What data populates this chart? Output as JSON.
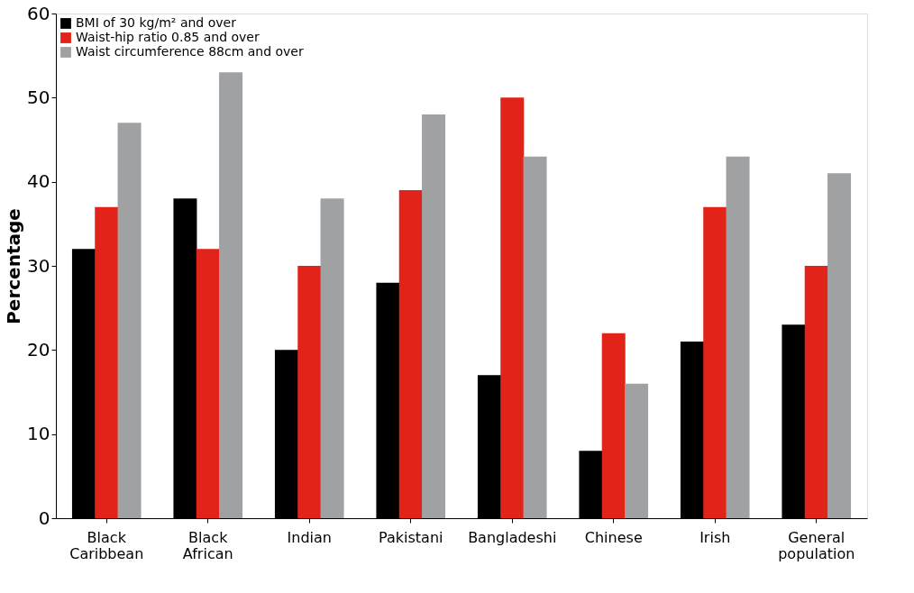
{
  "chart_data": {
    "type": "bar",
    "ylabel": "Percentage",
    "categories": [
      "Black Caribbean",
      "Black African",
      "Indian",
      "Pakistani",
      "Bangladeshi",
      "Chinese",
      "Irish",
      "General population"
    ],
    "series": [
      {
        "name": "BMI of 30 kg/m² and over",
        "color": "#000000",
        "values": [
          32,
          38,
          20,
          28,
          17,
          8,
          21,
          23
        ]
      },
      {
        "name": "Waist-hip ratio 0.85 and over",
        "color": "#e2231a",
        "values": [
          37,
          32,
          30,
          39,
          50,
          22,
          37,
          30
        ]
      },
      {
        "name": "Waist circumference 88cm and over",
        "color": "#a0a1a3",
        "values": [
          47,
          53,
          38,
          48,
          43,
          16,
          43,
          41
        ]
      }
    ],
    "ylim": [
      0,
      60
    ],
    "yticks": [
      0,
      10,
      20,
      30,
      40,
      50,
      60
    ],
    "grid": false,
    "legend": "top left"
  }
}
